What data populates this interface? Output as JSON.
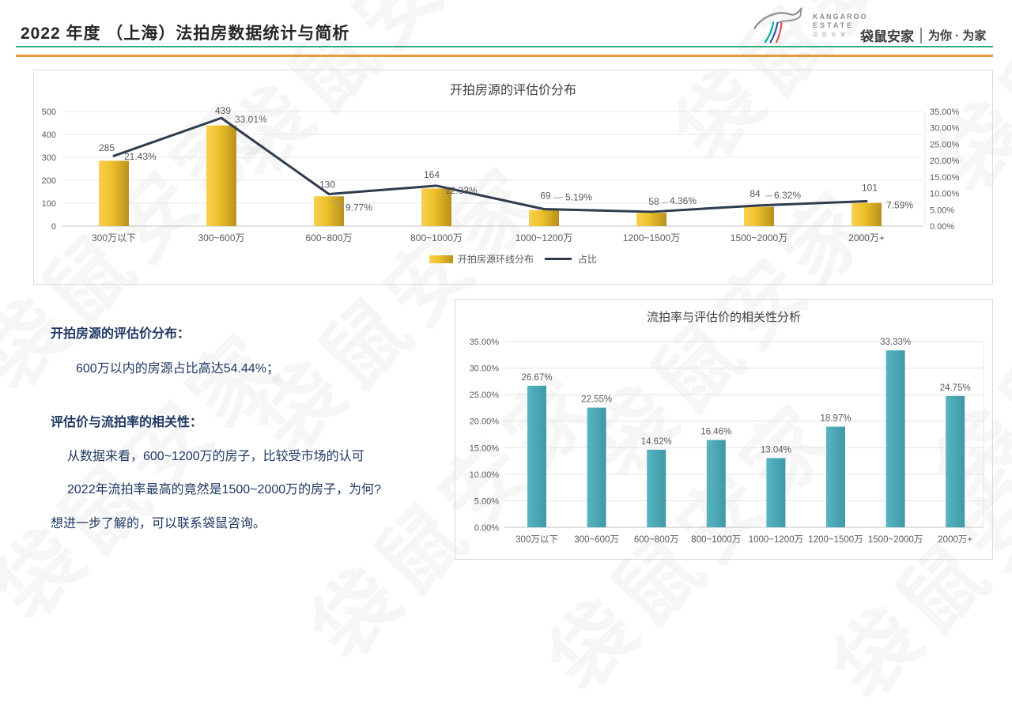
{
  "slide": {
    "title": "2022 年度 （上海）法拍房数据统计与简析",
    "watermark_text": "袋鼠安家",
    "brand": {
      "logo_text_top": "KANGAROO",
      "logo_text_bottom": "ESTATE",
      "logo_text_cn": "袋 鼠 安 家",
      "name_cn": "袋鼠安家",
      "slogan": "为你 · 为家"
    },
    "accent": {
      "green_rule": "#2fae7d",
      "orange_rule": "#e79b3c"
    }
  },
  "notes": {
    "heading1": "开拍房源的评估价分布：",
    "body1": "600万以内的房源占比高达54.44%；",
    "heading2": "评估价与流拍率的相关性：",
    "body2": "从数据来看，600~1200万的房子，比较受市场的认可",
    "body3": "2022年流拍率最高的竟然是1500~2000万的房子，为何?",
    "body4": "想进一步了解的，可以联系袋鼠咨询。"
  },
  "chart_data": [
    {
      "type": "bar",
      "combo": "bar+line",
      "title": "开拍房源的评估价分布",
      "categories": [
        "300万以下",
        "300~600万",
        "600~800万",
        "800~1000万",
        "1000~1200万",
        "1200~1500万",
        "1500~2000万",
        "2000万+"
      ],
      "series": [
        {
          "name": "开拍房源环线分布",
          "type": "bar",
          "axis": "left",
          "values": [
            285,
            439,
            130,
            164,
            69,
            58,
            84,
            101
          ],
          "labels": [
            "285",
            "439",
            "130",
            "164",
            "69",
            "58",
            "84",
            "101"
          ],
          "color_start": "#F7D04F",
          "color_mid": "#EFC22C",
          "color_end": "#B8901B"
        },
        {
          "name": "占比",
          "type": "line",
          "axis": "right",
          "values": [
            21.43,
            33.01,
            9.77,
            12.33,
            5.19,
            4.36,
            6.32,
            7.59
          ],
          "labels": [
            "21.43%",
            "33.01%",
            "9.77%",
            "12.33%",
            "5.19%",
            "4.36%",
            "6.32%",
            "7.59%"
          ],
          "color": "#2E3C4E"
        }
      ],
      "left_axis": {
        "min": 0,
        "max": 500,
        "ticks": [
          "500",
          "400",
          "300",
          "200",
          "100",
          "0"
        ]
      },
      "right_axis": {
        "min": 0,
        "max": 35,
        "ticks": [
          "35.00%",
          "30.00%",
          "25.00%",
          "20.00%",
          "15.00%",
          "10.00%",
          "5.00%",
          "0.00%"
        ]
      },
      "grid": true,
      "legend_position": "bottom"
    },
    {
      "type": "bar",
      "title": "流拍率与评估价的相关性分析",
      "categories": [
        "300万以下",
        "300~600万",
        "600~800万",
        "800~1000万",
        "1000~1200万",
        "1200~1500万",
        "1500~2000万",
        "2000万+"
      ],
      "values": [
        26.67,
        22.55,
        14.62,
        16.46,
        13.04,
        18.97,
        33.33,
        24.75
      ],
      "labels": [
        "26.67%",
        "22.55%",
        "14.62%",
        "16.46%",
        "13.04%",
        "18.97%",
        "33.33%",
        "24.75%"
      ],
      "ylim": [
        0,
        35
      ],
      "yticks": [
        "35.00%",
        "30.00%",
        "25.00%",
        "20.00%",
        "15.00%",
        "10.00%",
        "5.00%",
        "0.00%"
      ],
      "bar_color": "#4FACB9",
      "grid": true,
      "legend_position": "none"
    }
  ]
}
